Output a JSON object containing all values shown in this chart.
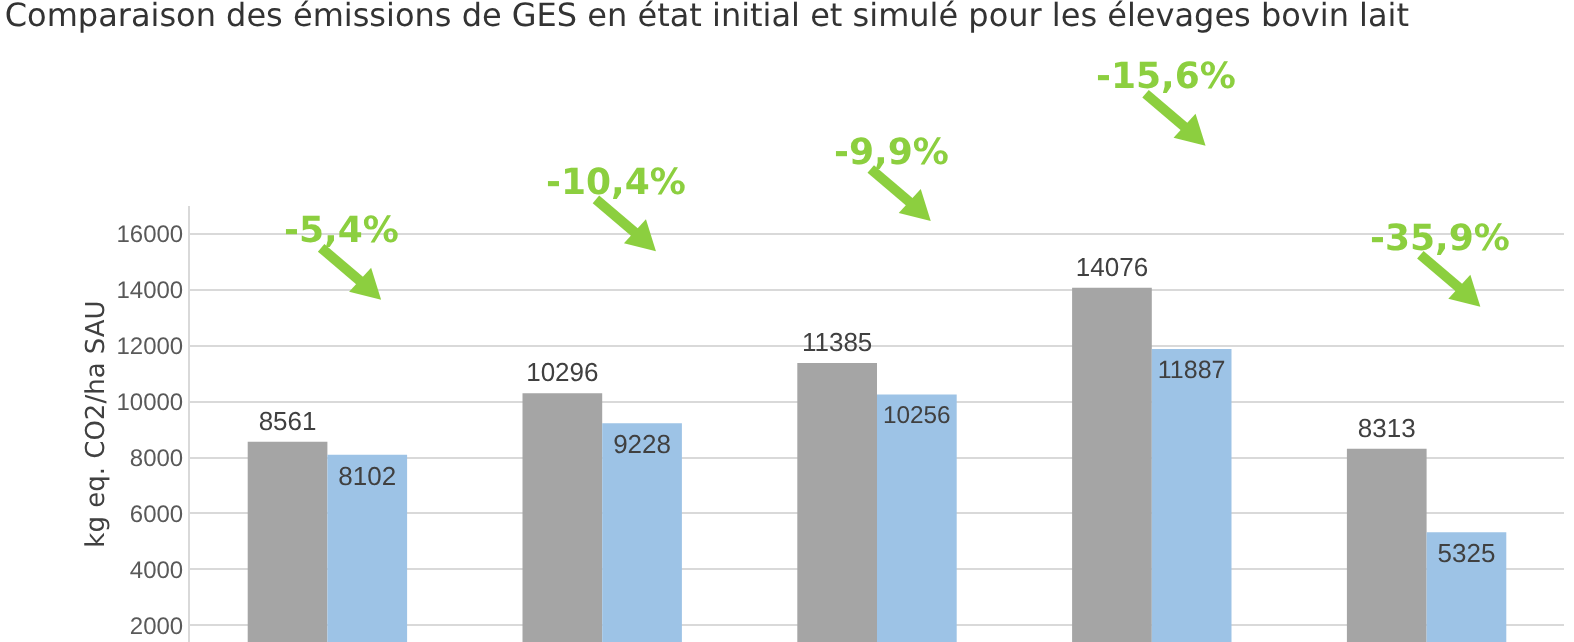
{
  "chart_data": {
    "type": "bar",
    "title": "Comparaison des émissions de GES en état initial et simulé pour les élevages bovin lait",
    "ylabel": "kg eq. CO2/ha SAU",
    "categories": [
      null,
      null,
      null,
      null,
      null
    ],
    "series": [
      {
        "color": "#a5a5a5",
        "values": [
          8561,
          10296,
          11385,
          14076,
          8313
        ]
      },
      {
        "color": "#9dc3e6",
        "values": [
          8102,
          9228,
          10256,
          11887,
          5325
        ]
      }
    ],
    "ylim": [
      1400,
      17000
    ],
    "yticks": [
      2000,
      4000,
      6000,
      8000,
      10000,
      12000,
      14000,
      16000
    ],
    "grid": "y",
    "data_labels": true,
    "annotations": [
      "-5,4%",
      "-10,4%",
      "-9,9%",
      "-15,6%",
      "-35,9%"
    ]
  }
}
